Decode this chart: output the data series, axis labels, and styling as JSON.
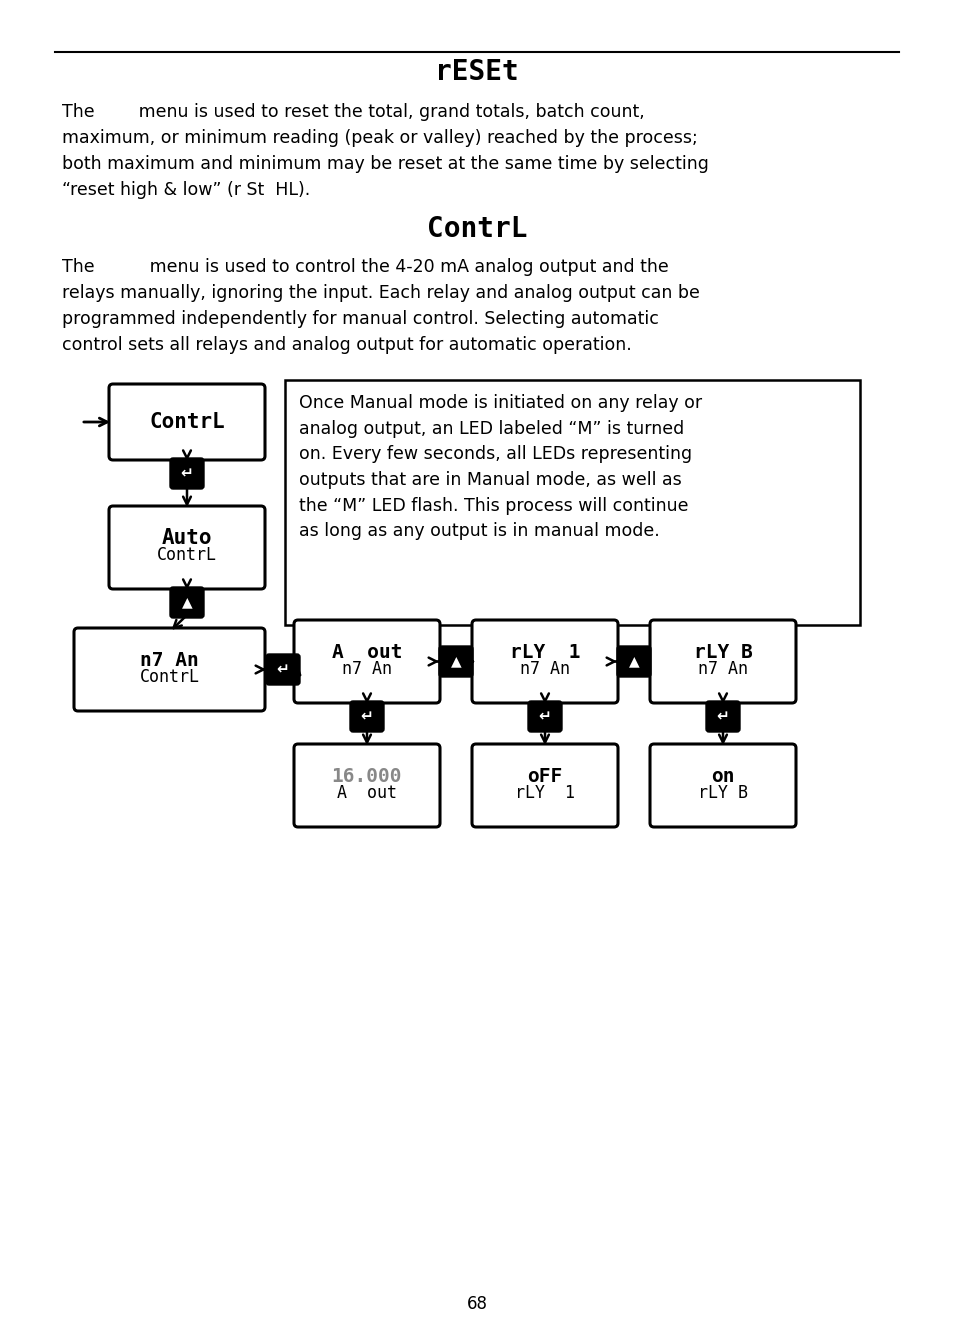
{
  "page_num": "68",
  "title1": "rESEt",
  "title2": "ContrL",
  "reset_lines": [
    "The        menu is used to reset the total, grand totals, batch count,",
    "maximum, or minimum reading (peak or valley) reached by the process;",
    "both maximum and minimum may be reset at the same time by selecting",
    "“reset high & low” (r St  HL)."
  ],
  "contrl_lines": [
    "The          menu is used to control the 4-20 mA analog output and the",
    "relays manually, ignoring the input. Each relay and analog output can be",
    "programmed independently for manual control. Selecting automatic",
    "control sets all relays and analog output for automatic operation."
  ],
  "note_text": "Once Manual mode is initiated on any relay or\nanalog output, an LED labeled “M” is turned\non. Every few seconds, all LEDs representing\noutputs that are in Manual mode, as well as\nthe “M” LED flash. This process will continue\nas long as any output is in manual mode.",
  "bg_color": "#ffffff",
  "lcd_color": "#888888"
}
